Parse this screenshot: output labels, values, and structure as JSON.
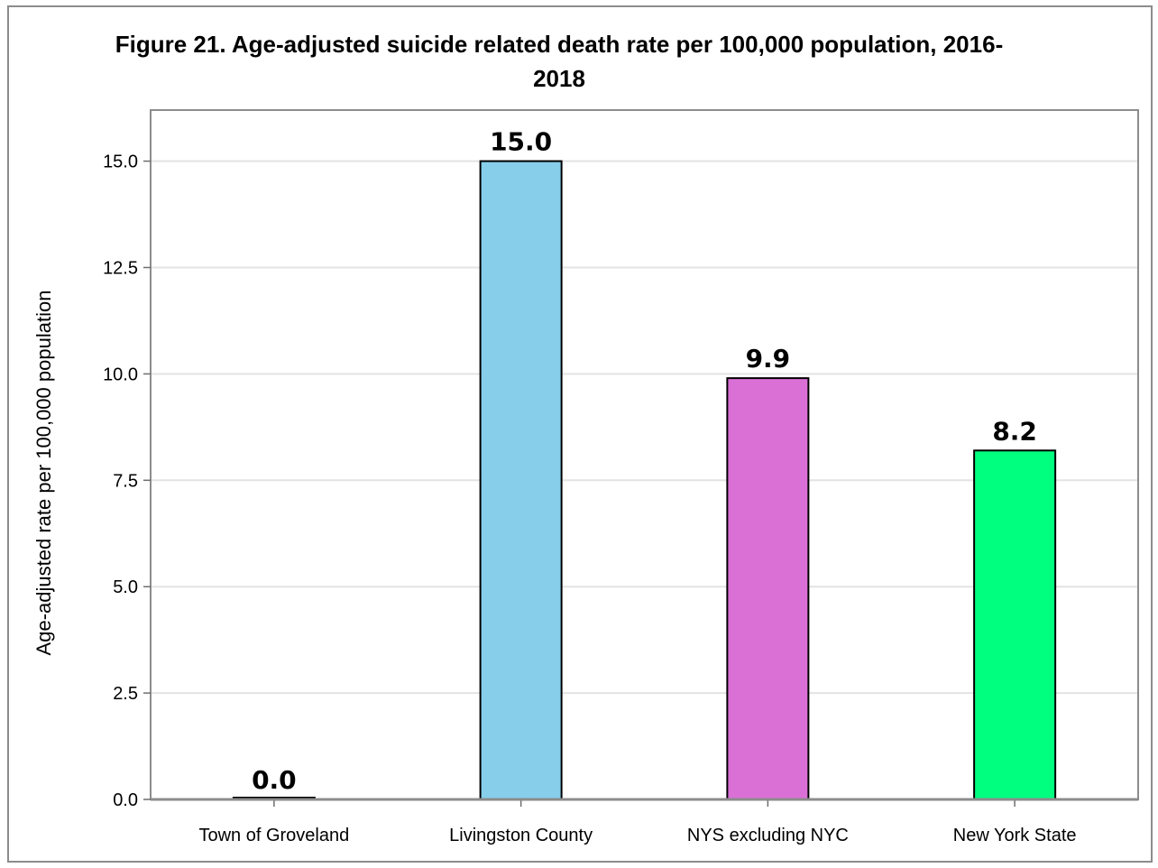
{
  "chart_data": {
    "type": "bar",
    "title": "Figure 21. Age-adjusted suicide related death rate per 100,000 population, 2016-2018",
    "title_lines": [
      "Figure 21. Age-adjusted suicide related death rate per 100,000 population, 2016-",
      "2018"
    ],
    "xlabel": "",
    "ylabel": "Age-adjusted rate per 100,000 population",
    "categories": [
      "Town of Groveland",
      "Livingston County",
      "NYS excluding NYC",
      "New York State"
    ],
    "values": [
      0.0,
      15.0,
      9.9,
      8.2
    ],
    "data_labels": [
      "0.0",
      "15.0",
      "9.9",
      "8.2"
    ],
    "colors": [
      "#9e9e9e",
      "#87ceeb",
      "#da70d6",
      "#00ff7f"
    ],
    "ylim": [
      0,
      16.2
    ],
    "yticks": [
      0,
      2.5,
      5,
      7.5,
      10,
      12.5,
      15
    ],
    "ytick_labels": [
      "0.0",
      "2.5",
      "5.0",
      "7.5",
      "10.0",
      "12.5",
      "15.0"
    ],
    "grid": true,
    "legend": "none"
  }
}
